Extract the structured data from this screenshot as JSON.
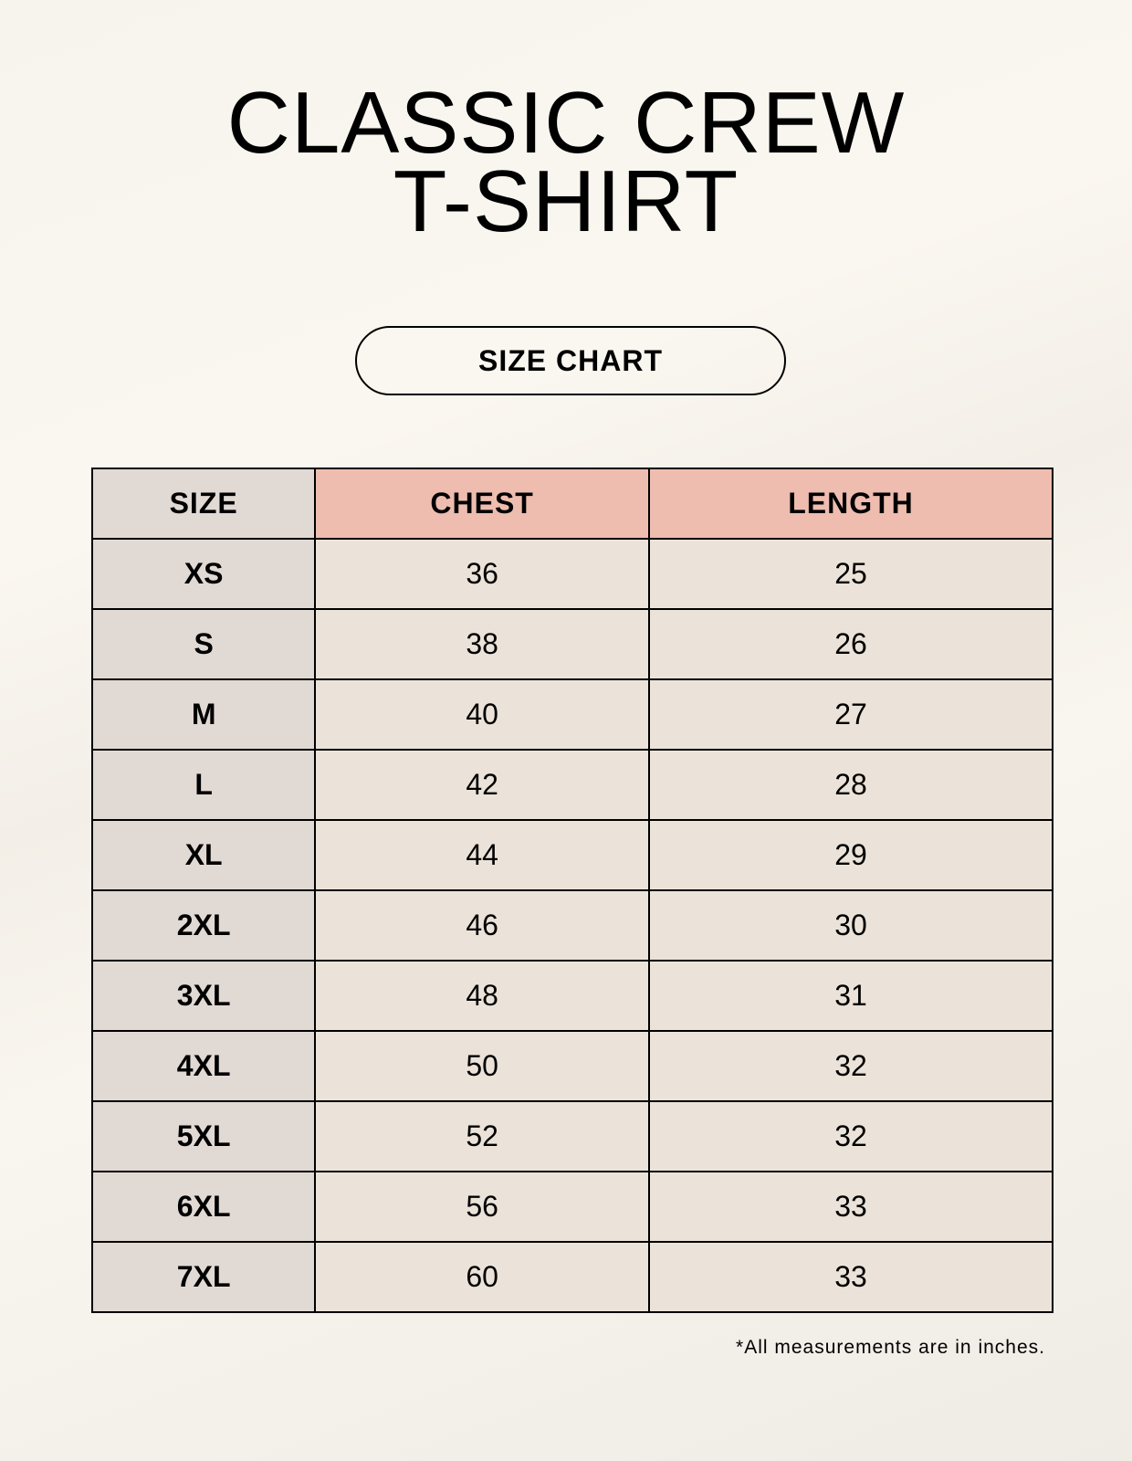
{
  "title_line1": "CLASSIC CREW",
  "title_line2": "T-SHIRT",
  "badge": "SIZE CHART",
  "table": {
    "headers": [
      "SIZE",
      "CHEST",
      "LENGTH"
    ],
    "rows": [
      [
        "XS",
        "36",
        "25"
      ],
      [
        "S",
        "38",
        "26"
      ],
      [
        "M",
        "40",
        "27"
      ],
      [
        "L",
        "42",
        "28"
      ],
      [
        "XL",
        "44",
        "29"
      ],
      [
        "2XL",
        "46",
        "30"
      ],
      [
        "3XL",
        "48",
        "31"
      ],
      [
        "4XL",
        "50",
        "32"
      ],
      [
        "5XL",
        "52",
        "32"
      ],
      [
        "6XL",
        "56",
        "33"
      ],
      [
        "7XL",
        "60",
        "33"
      ]
    ]
  },
  "footnote": "*All measurements are in inches.",
  "colors": {
    "header_size": "#e1d9d4",
    "header_measure": "#eebdb0",
    "cell": "#ebe3d9"
  }
}
